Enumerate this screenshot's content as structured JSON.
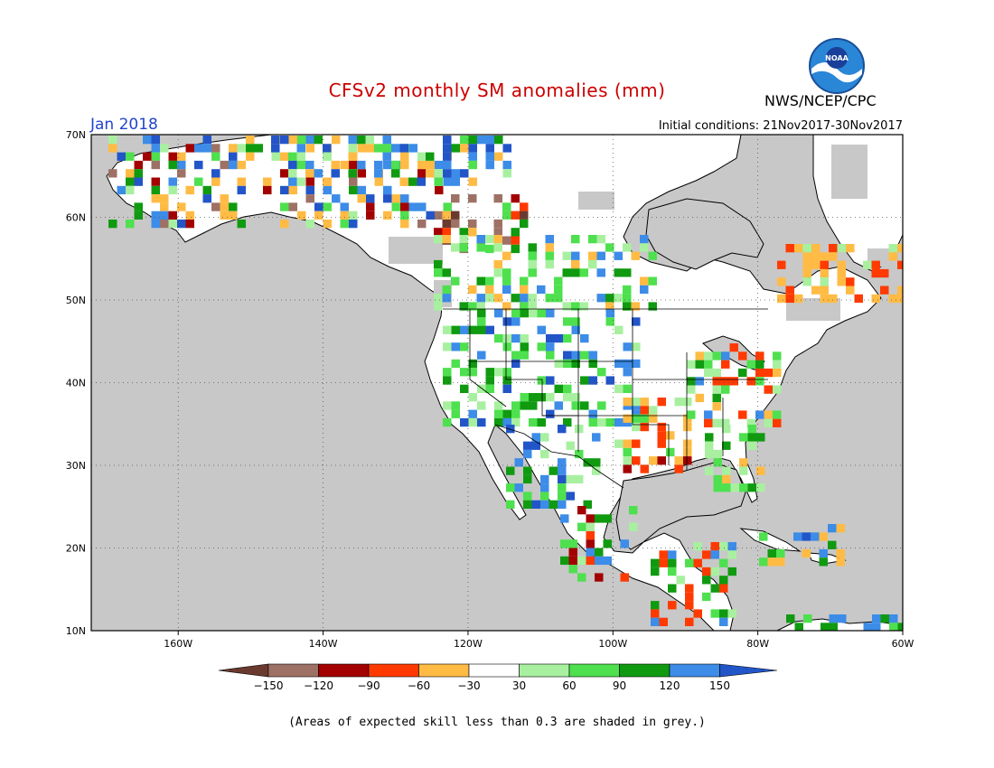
{
  "header": {
    "title": "CFSv2 monthly SM anomalies (mm)",
    "organization": "NWS/NCEP/CPC",
    "target_month": "Jan 2018",
    "initial_conditions": "Initial conditions: 21Nov2017-30Nov2017",
    "logo_text": "NOAA"
  },
  "map": {
    "lon_range": [
      -172,
      -60
    ],
    "lat_range": [
      10,
      70
    ],
    "lon_labels": [
      "160W",
      "140W",
      "120W",
      "100W",
      "80W",
      "60W"
    ],
    "lat_labels": [
      "70N",
      "60N",
      "50N",
      "40N",
      "30N",
      "20N",
      "10N"
    ],
    "colors": {
      "ocean": "#c8c8c8",
      "low_skill_land": "#c8c8c8",
      "land_neutral": "#ffffff",
      "gridline": "#555555"
    }
  },
  "colorbar": {
    "labels": [
      "-150",
      "-120",
      "-90",
      "-60",
      "-30",
      "30",
      "60",
      "90",
      "120",
      "150"
    ],
    "bins": [
      {
        "range": "< -150",
        "color": "#6b3a2e"
      },
      {
        "range": "-150 to -120",
        "color": "#9e7166"
      },
      {
        "range": "-120 to -90",
        "color": "#a30000"
      },
      {
        "range": "-90 to -60",
        "color": "#ff3a00"
      },
      {
        "range": "-60 to -30",
        "color": "#ffbb44"
      },
      {
        "range": "-30 to 30",
        "color": "#ffffff"
      },
      {
        "range": "30 to 60",
        "color": "#a8f0a0"
      },
      {
        "range": "60 to 90",
        "color": "#4ee04e"
      },
      {
        "range": "90 to 120",
        "color": "#109a10"
      },
      {
        "range": "120 to 150",
        "color": "#3c8ce8"
      },
      {
        "range": "> 150",
        "color": "#2255c8"
      }
    ]
  },
  "footer": {
    "note": "(Areas of expected skill less than 0.3 are shaded in grey.)"
  }
}
